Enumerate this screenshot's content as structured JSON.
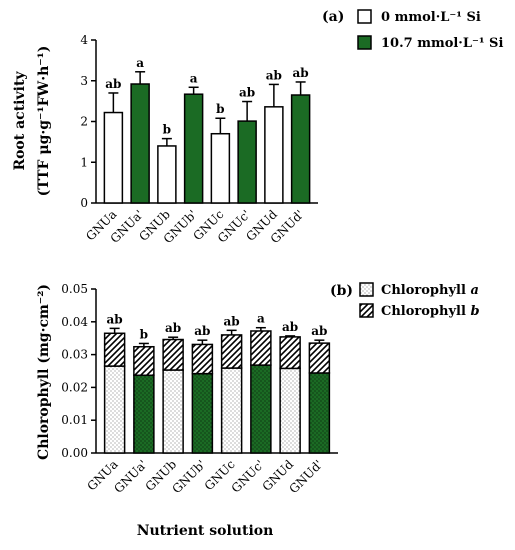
{
  "colors": {
    "green": "#1b6b24",
    "white": "#ffffff",
    "black": "#000000"
  },
  "x_axis_label": "Nutrient solution",
  "chart_data": [
    {
      "panel": "(a)",
      "type": "bar",
      "ylabel": "Root activity",
      "ylabel2": "(TTF μg·g⁻¹FW·h⁻¹)",
      "ylim": [
        0,
        4
      ],
      "yticks": [
        "0",
        "1",
        "2",
        "3",
        "4"
      ],
      "categories": [
        "GNUa",
        "GNUa'",
        "GNUb",
        "GNUb'",
        "GNUc",
        "GNUc'",
        "GNUd",
        "GNUd'"
      ],
      "values": [
        2.22,
        2.92,
        1.4,
        2.67,
        1.7,
        2.01,
        2.36,
        2.65
      ],
      "errors": [
        0.48,
        0.3,
        0.18,
        0.17,
        0.38,
        0.48,
        0.55,
        0.32
      ],
      "letters": [
        "ab",
        "a",
        "b",
        "a",
        "b",
        "ab",
        "ab",
        "ab"
      ],
      "legend": [
        "0 mmol·L⁻¹ Si",
        "10.7 mmol·L⁻¹ Si"
      ],
      "legend_position": "top-right"
    },
    {
      "panel": "(b)",
      "type": "bar",
      "stacked": true,
      "ylabel": "Chlorophyll (mg·cm⁻²)",
      "ylim": [
        0,
        0.05
      ],
      "yticks": [
        "0.00",
        "0.01",
        "0.02",
        "0.03",
        "0.04",
        "0.05"
      ],
      "categories": [
        "GNUa",
        "GNUa'",
        "GNUb",
        "GNUb'",
        "GNUc",
        "GNUc'",
        "GNUd",
        "GNUd'"
      ],
      "series": [
        {
          "name": "Chlorophyll a",
          "values": [
            0.0265,
            0.0237,
            0.0253,
            0.0242,
            0.0259,
            0.0268,
            0.0258,
            0.0244
          ]
        },
        {
          "name": "Chlorophyll b",
          "values": [
            0.01,
            0.0087,
            0.0093,
            0.0089,
            0.0101,
            0.0104,
            0.0096,
            0.0091
          ]
        }
      ],
      "errors": [
        0.0015,
        0.001,
        0.0007,
        0.0013,
        0.0014,
        0.001,
        0.0003,
        0.0009
      ],
      "letters": [
        "ab",
        "b",
        "ab",
        "ab",
        "ab",
        "a",
        "ab",
        "ab"
      ],
      "legend_position": "top-right"
    }
  ]
}
